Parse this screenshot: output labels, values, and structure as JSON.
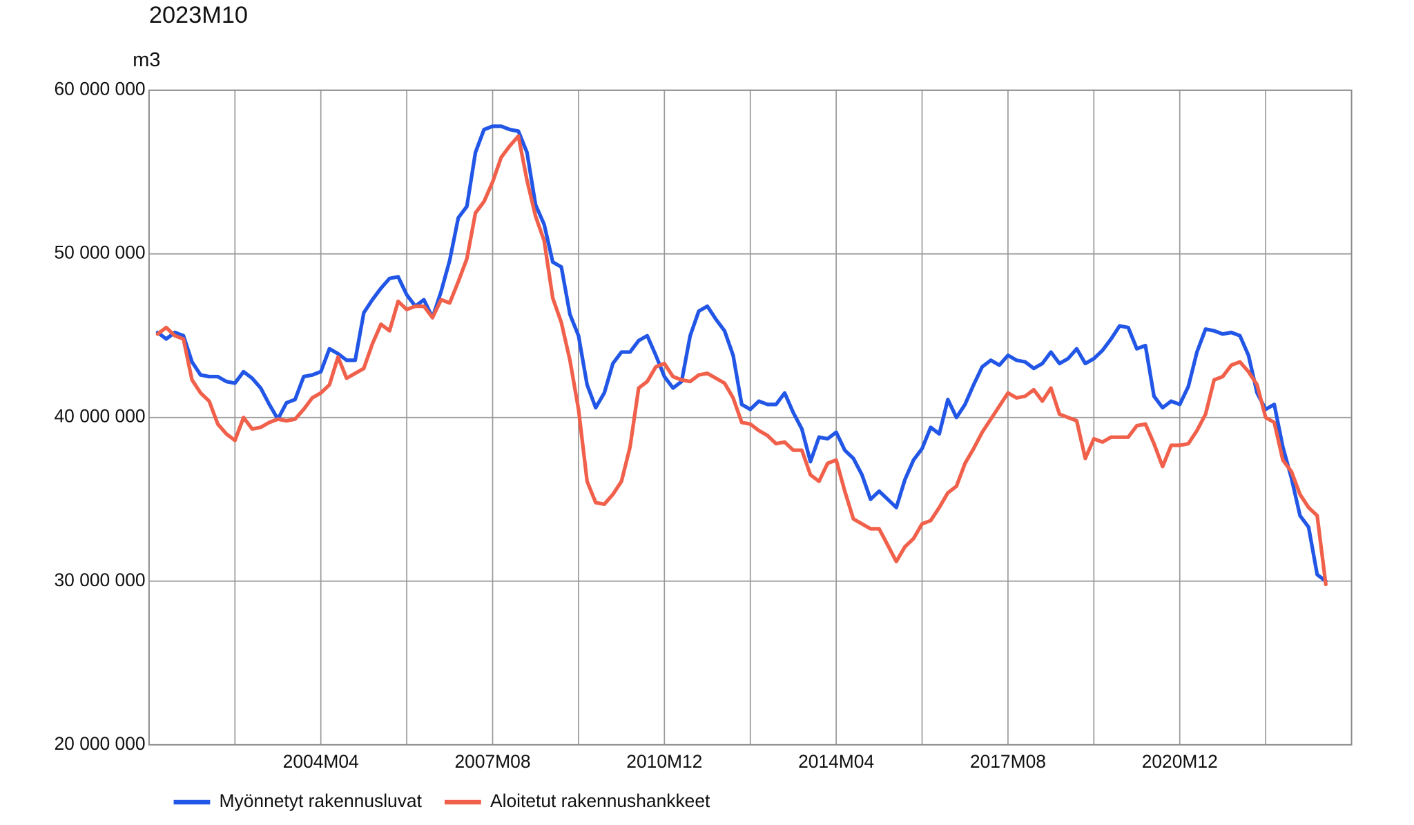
{
  "chart_data": {
    "type": "line",
    "title": "2023M10",
    "y_label": "m3",
    "categories": [
      "2001M02",
      "2001M04",
      "2001M06",
      "2001M08",
      "2001M10",
      "2001M12",
      "2002M02",
      "2002M04",
      "2002M06",
      "2002M08",
      "2002M10",
      "2002M12",
      "2003M02",
      "2003M04",
      "2003M06",
      "2003M08",
      "2003M10",
      "2003M12",
      "2004M02",
      "2004M04",
      "2004M06",
      "2004M08",
      "2004M10",
      "2004M12",
      "2005M02",
      "2005M04",
      "2005M06",
      "2005M08",
      "2005M10",
      "2005M12",
      "2006M02",
      "2006M04",
      "2006M06",
      "2006M08",
      "2006M10",
      "2006M12",
      "2007M02",
      "2007M04",
      "2007M06",
      "2007M08",
      "2007M10",
      "2007M12",
      "2008M02",
      "2008M04",
      "2008M06",
      "2008M08",
      "2008M10",
      "2008M12",
      "2009M02",
      "2009M04",
      "2009M06",
      "2009M08",
      "2009M10",
      "2009M12",
      "2010M02",
      "2010M04",
      "2010M06",
      "2010M08",
      "2010M10",
      "2010M12",
      "2011M02",
      "2011M04",
      "2011M06",
      "2011M08",
      "2011M10",
      "2011M12",
      "2012M02",
      "2012M04",
      "2012M06",
      "2012M08",
      "2012M10",
      "2012M12",
      "2013M02",
      "2013M04",
      "2013M06",
      "2013M08",
      "2013M10",
      "2013M12",
      "2014M02",
      "2014M04",
      "2014M06",
      "2014M08",
      "2014M10",
      "2014M12",
      "2015M02",
      "2015M04",
      "2015M06",
      "2015M08",
      "2015M10",
      "2015M12",
      "2016M02",
      "2016M04",
      "2016M06",
      "2016M08",
      "2016M10",
      "2016M12",
      "2017M02",
      "2017M04",
      "2017M06",
      "2017M08",
      "2017M10",
      "2017M12",
      "2018M02",
      "2018M04",
      "2018M06",
      "2018M08",
      "2018M10",
      "2018M12",
      "2019M02",
      "2019M04",
      "2019M06",
      "2019M08",
      "2019M10",
      "2019M12",
      "2020M02",
      "2020M04",
      "2020M06",
      "2020M08",
      "2020M10",
      "2020M12",
      "2021M02",
      "2021M04",
      "2021M06",
      "2021M08",
      "2021M10",
      "2021M12",
      "2022M02",
      "2022M04",
      "2022M06",
      "2022M08",
      "2022M10",
      "2022M12",
      "2023M02",
      "2023M04",
      "2023M06",
      "2023M08",
      "2023M10"
    ],
    "series": [
      {
        "name": "Myönnetyt rakennusluvat",
        "color": "#2156e6",
        "values": [
          45200000,
          44800000,
          45200000,
          45000000,
          43400000,
          42600000,
          42500000,
          42500000,
          42200000,
          42100000,
          42800000,
          42400000,
          41800000,
          40800000,
          39900000,
          40900000,
          41100000,
          42500000,
          42600000,
          42800000,
          44200000,
          43900000,
          43500000,
          43500000,
          46400000,
          47200000,
          47900000,
          48500000,
          48600000,
          47500000,
          46800000,
          47200000,
          46100000,
          47700000,
          49600000,
          52200000,
          52900000,
          56200000,
          57600000,
          57800000,
          57800000,
          57600000,
          57500000,
          56200000,
          53000000,
          51800000,
          49500000,
          49200000,
          46300000,
          45000000,
          42000000,
          40600000,
          41500000,
          43300000,
          44000000,
          44000000,
          44700000,
          45000000,
          43800000,
          42500000,
          41800000,
          42200000,
          45000000,
          46500000,
          46800000,
          46000000,
          45300000,
          43800000,
          40800000,
          40500000,
          41000000,
          40800000,
          40800000,
          41500000,
          40300000,
          39300000,
          37300000,
          38800000,
          38700000,
          39100000,
          38000000,
          37500000,
          36500000,
          35000000,
          35500000,
          35000000,
          34500000,
          36200000,
          37400000,
          38100000,
          39400000,
          39000000,
          41100000,
          40000000,
          40800000,
          42000000,
          43100000,
          43500000,
          43200000,
          43800000,
          43500000,
          43400000,
          43000000,
          43300000,
          44000000,
          43300000,
          43600000,
          44200000,
          43300000,
          43600000,
          44100000,
          44800000,
          45600000,
          45500000,
          44200000,
          44400000,
          41300000,
          40600000,
          41000000,
          40800000,
          41900000,
          44000000,
          45400000,
          45300000,
          45100000,
          45200000,
          45000000,
          43800000,
          41500000,
          40500000,
          40800000,
          38200000,
          36300000,
          34000000,
          33300000,
          30400000,
          30000000
        ]
      },
      {
        "name": "Aloitetut rakennushankkeet",
        "color": "#f0604a",
        "values": [
          45100000,
          45500000,
          45000000,
          44800000,
          42300000,
          41500000,
          41000000,
          39600000,
          39000000,
          38600000,
          40000000,
          39300000,
          39400000,
          39700000,
          39900000,
          39800000,
          39900000,
          40500000,
          41200000,
          41500000,
          42000000,
          43700000,
          42400000,
          42700000,
          43000000,
          44500000,
          45700000,
          45300000,
          47100000,
          46600000,
          46800000,
          46800000,
          46100000,
          47200000,
          47000000,
          48300000,
          49700000,
          52500000,
          53200000,
          54400000,
          55900000,
          56600000,
          57200000,
          54500000,
          52300000,
          50800000,
          47300000,
          45800000,
          43500000,
          40500000,
          36100000,
          34800000,
          34700000,
          35300000,
          36100000,
          38200000,
          41800000,
          42200000,
          43100000,
          43300000,
          42500000,
          42300000,
          42200000,
          42600000,
          42700000,
          42400000,
          42100000,
          41200000,
          39700000,
          39600000,
          39200000,
          38900000,
          38400000,
          38500000,
          38000000,
          38000000,
          36500000,
          36100000,
          37200000,
          37400000,
          35500000,
          33800000,
          33500000,
          33200000,
          33200000,
          32200000,
          31200000,
          32100000,
          32600000,
          33500000,
          33700000,
          34500000,
          35400000,
          35800000,
          37200000,
          38100000,
          39100000,
          39900000,
          40700000,
          41500000,
          41200000,
          41300000,
          41700000,
          41000000,
          41800000,
          40200000,
          40000000,
          39800000,
          37500000,
          38700000,
          38500000,
          38800000,
          38800000,
          38800000,
          39500000,
          39600000,
          38400000,
          37000000,
          38300000,
          38300000,
          38400000,
          39200000,
          40200000,
          42300000,
          42500000,
          43200000,
          43400000,
          42800000,
          42000000,
          40000000,
          39700000,
          37400000,
          36700000,
          35300000,
          34500000,
          34000000,
          29800000
        ]
      }
    ],
    "xticks": [
      "2004M04",
      "2007M08",
      "2010M12",
      "2014M04",
      "2017M08",
      "2020M12"
    ],
    "ylim": [
      20000000,
      60000000
    ],
    "yticks": [
      {
        "value": 20000000,
        "label": "20 000 000"
      },
      {
        "value": 30000000,
        "label": "30 000 000"
      },
      {
        "value": 40000000,
        "label": "40 000 000"
      },
      {
        "value": 50000000,
        "label": "50 000 000"
      },
      {
        "value": 60000000,
        "label": "60 000 000"
      }
    ],
    "grid": true,
    "legend": "bottom"
  }
}
